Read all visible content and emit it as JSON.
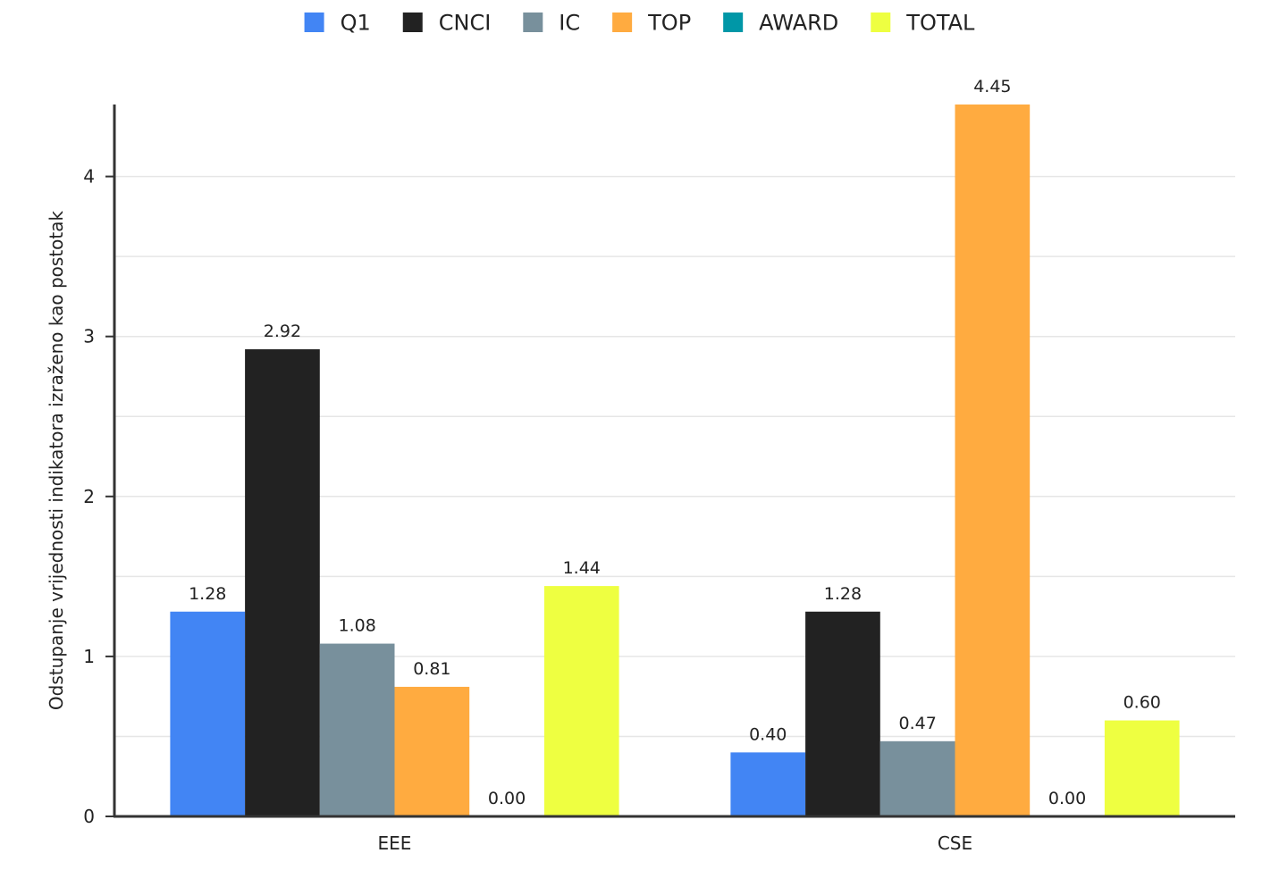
{
  "chart_data": {
    "type": "bar",
    "categories": [
      "EEE",
      "CSE"
    ],
    "series": [
      {
        "name": "Q1",
        "color": "#4285f4",
        "values": [
          1.28,
          0.4
        ]
      },
      {
        "name": "CNCI",
        "color": "#222222",
        "values": [
          2.92,
          1.28
        ]
      },
      {
        "name": "IC",
        "color": "#78909c",
        "values": [
          1.08,
          0.47
        ]
      },
      {
        "name": "TOP",
        "color": "#ffab40",
        "values": [
          0.81,
          4.45
        ]
      },
      {
        "name": "AWARD",
        "color": "#0097a7",
        "values": [
          0.0,
          0.0
        ]
      },
      {
        "name": "TOTAL",
        "color": "#eeff41",
        "values": [
          1.44,
          0.6
        ]
      }
    ],
    "ylabel": "Odstupanje vrijednosti indikatora izraženo kao  postotak",
    "xlabel": "",
    "ylim": [
      0,
      4.45
    ],
    "yticks": [
      0,
      1,
      2,
      3,
      4
    ],
    "minor_gridlines": [
      0.5,
      1.5,
      2.5,
      3.5
    ],
    "value_format_decimals": 2,
    "legend_position": "top-center",
    "grid": true
  }
}
